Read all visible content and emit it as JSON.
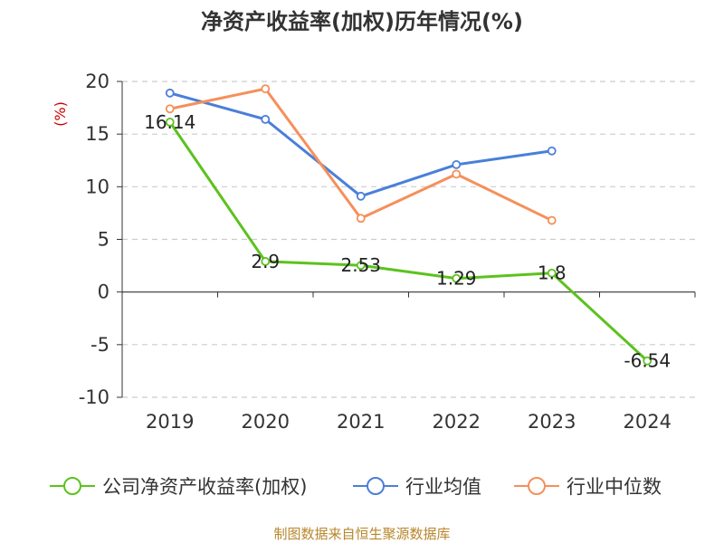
{
  "chart_data": {
    "type": "line",
    "title": "净资产收益率(加权)历年情况(%)",
    "ylabel": "(%)",
    "xlabel": "",
    "categories": [
      "2019",
      "2020",
      "2021",
      "2022",
      "2023",
      "2024"
    ],
    "ylim": [
      -10,
      20
    ],
    "yticks": [
      "20",
      "15",
      "10",
      "5",
      "0",
      "-5",
      "-10"
    ],
    "grid": true,
    "legend_position": "bottom",
    "series": [
      {
        "name": "公司净资产收益率(加权)",
        "color": "#5cc21e",
        "values": [
          16.14,
          2.9,
          2.53,
          1.29,
          1.8,
          -6.54
        ],
        "labels": [
          "16.14",
          "2.9",
          "2.53",
          "1.29",
          "1.8",
          "-6.54"
        ]
      },
      {
        "name": "行业均值",
        "color": "#4a7fd9",
        "values": [
          18.9,
          16.4,
          9.1,
          12.1,
          13.4,
          null
        ]
      },
      {
        "name": "行业中位数",
        "color": "#f5905a",
        "values": [
          17.4,
          19.3,
          7.0,
          11.2,
          6.8,
          null
        ]
      }
    ],
    "source": "制图数据来自恒生聚源数据库"
  }
}
